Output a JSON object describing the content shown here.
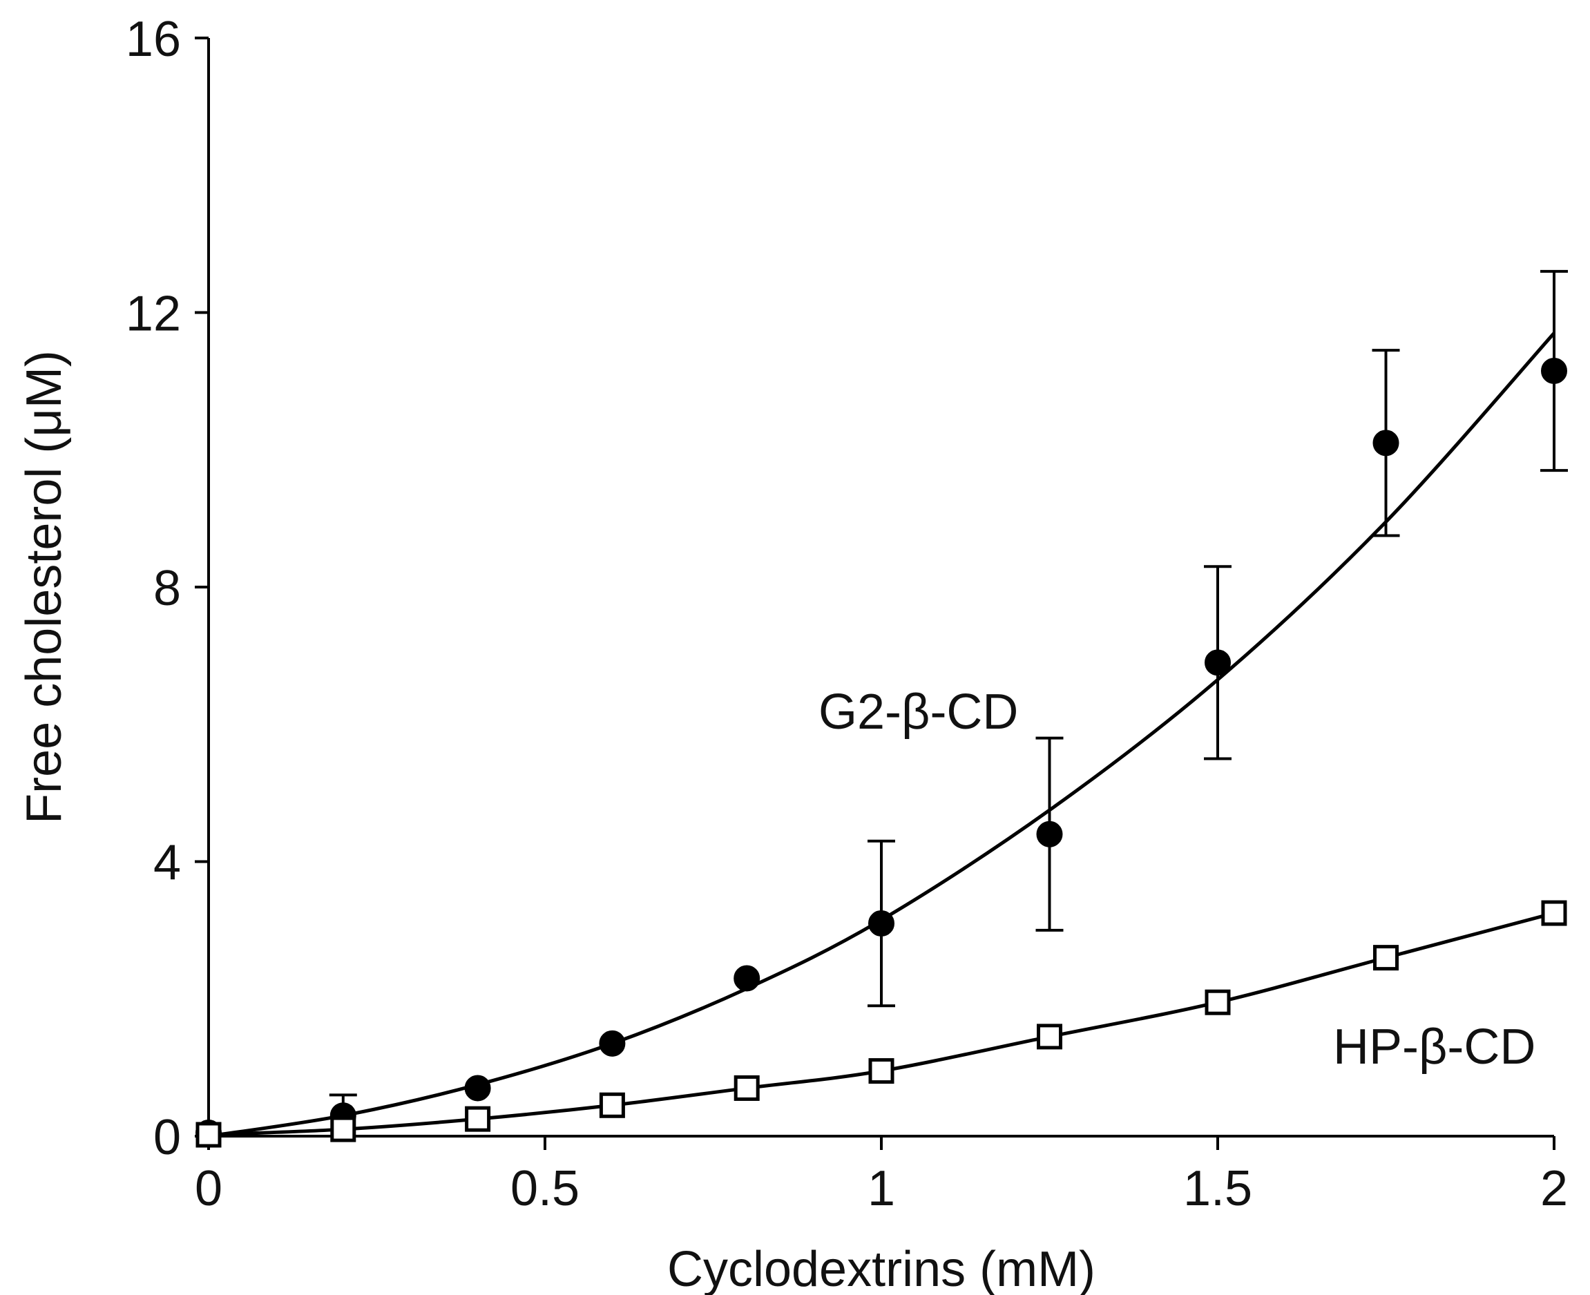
{
  "chart_data": {
    "type": "scatter",
    "title": "",
    "xlabel": "Cyclodextrins (mM)",
    "ylabel": "Free cholesterol (μM)",
    "xlim": [
      0,
      2
    ],
    "ylim": [
      0,
      16
    ],
    "xticks": [
      0,
      0.5,
      1,
      1.5,
      2
    ],
    "xtick_labels": [
      "0",
      "0.5",
      "1",
      "1.5",
      "2"
    ],
    "yticks": [
      0,
      4,
      8,
      12,
      16
    ],
    "ytick_labels": [
      "0",
      "4",
      "8",
      "12",
      "16"
    ],
    "grid": false,
    "legend": "inline labels",
    "series": [
      {
        "name": "G2-β-CD",
        "marker": "filled-circle",
        "x": [
          0,
          0.2,
          0.4,
          0.6,
          0.8,
          1.0,
          1.25,
          1.5,
          1.75,
          2.0
        ],
        "y": [
          0.05,
          0.3,
          0.7,
          1.35,
          2.3,
          3.1,
          4.4,
          6.9,
          10.1,
          11.15
        ],
        "error": [
          0,
          0.3,
          0,
          0,
          0,
          1.2,
          1.4,
          1.4,
          1.35,
          1.45
        ],
        "fit": [
          0,
          0.3,
          0.75,
          1.35,
          2.15,
          3.15,
          4.75,
          6.65,
          8.95,
          11.7
        ]
      },
      {
        "name": "HP-β-CD",
        "marker": "open-square",
        "x": [
          0,
          0.2,
          0.4,
          0.6,
          0.8,
          1.0,
          1.25,
          1.5,
          1.75,
          2.0
        ],
        "y": [
          0.02,
          0.1,
          0.25,
          0.45,
          0.7,
          0.95,
          1.45,
          1.95,
          2.6,
          3.25
        ],
        "error": [
          0,
          0,
          0,
          0,
          0,
          0,
          0,
          0,
          0,
          0
        ],
        "fit": [
          0.02,
          0.1,
          0.25,
          0.45,
          0.7,
          0.95,
          1.45,
          1.95,
          2.6,
          3.25
        ]
      }
    ]
  }
}
